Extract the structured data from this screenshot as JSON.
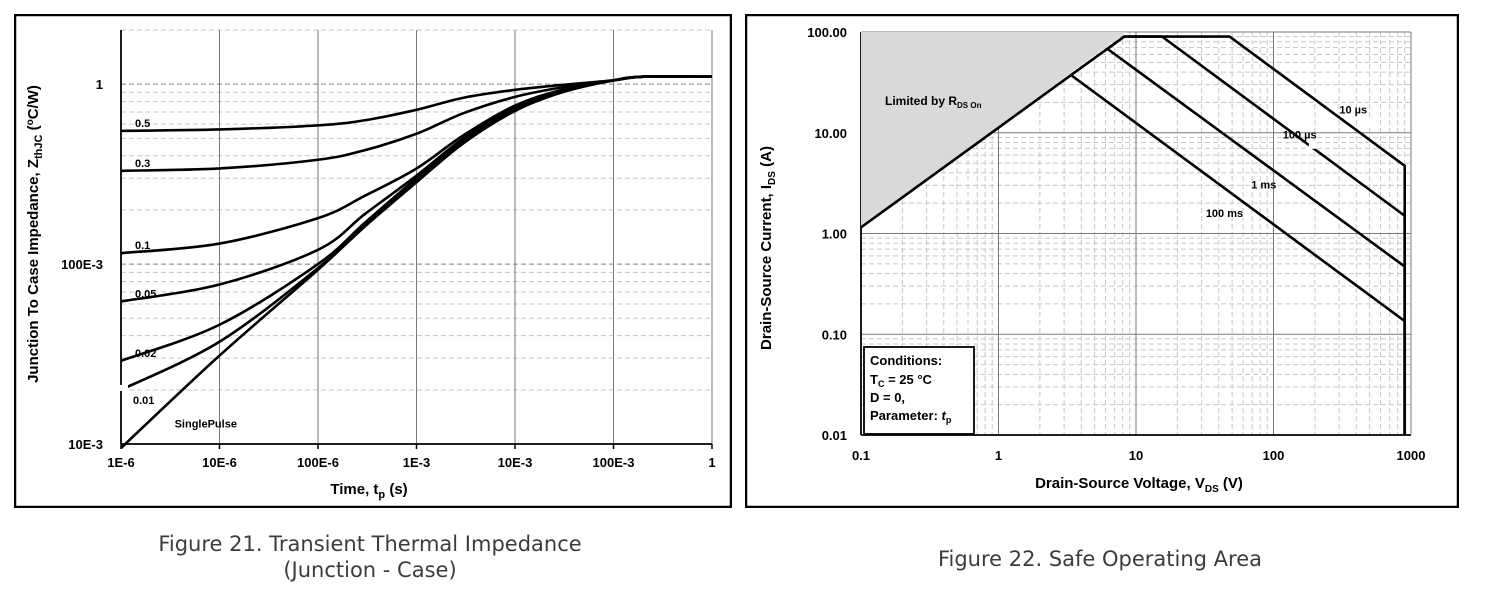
{
  "figures": [
    {
      "caption_line1": "Figure 21. Transient Thermal Impedance",
      "caption_line2": "(Junction - Case)"
    },
    {
      "caption_line1": "Figure 22. Safe Operating Area"
    }
  ],
  "chart_data": [
    {
      "type": "line",
      "x_scale": "log",
      "y_scale": "log",
      "xlabel": "Time, t",
      "xlabel_sub": "p",
      "xlabel_unit": " (s)",
      "ylabel": "Junction To Case Impedance, Z",
      "ylabel_sub": "thJC",
      "ylabel_unit": " (",
      "ylabel_unit_sup": "o",
      "ylabel_unit_tail": "C/W)",
      "xlim": [
        1e-06,
        1
      ],
      "ylim": [
        0.01,
        2
      ],
      "x_ticks": [
        1e-06,
        1e-05,
        0.0001,
        0.001,
        0.01,
        0.1,
        1
      ],
      "x_tick_labels": [
        "1E-6",
        "10E-6",
        "100E-6",
        "1E-3",
        "10E-3",
        "100E-3",
        "1"
      ],
      "y_ticks": [
        0.01,
        0.1,
        1
      ],
      "y_tick_labels": [
        "10E-3",
        "100E-3",
        "1"
      ],
      "grid": true,
      "series": [
        {
          "name": "0.5",
          "x": [
            1e-06,
            1e-05,
            0.0001,
            0.0003,
            0.001,
            0.003,
            0.01,
            0.03,
            0.1,
            0.2,
            1
          ],
          "y": [
            0.55,
            0.56,
            0.59,
            0.63,
            0.72,
            0.84,
            0.93,
            0.99,
            1.05,
            1.1,
            1.1
          ]
        },
        {
          "name": "0.3",
          "x": [
            1e-06,
            1e-05,
            0.0001,
            0.0003,
            0.001,
            0.003,
            0.01,
            0.03,
            0.1,
            0.2,
            1
          ],
          "y": [
            0.33,
            0.34,
            0.38,
            0.43,
            0.53,
            0.69,
            0.85,
            0.96,
            1.05,
            1.1,
            1.1
          ]
        },
        {
          "name": "0.1",
          "x": [
            1e-06,
            1e-05,
            0.0001,
            0.0003,
            0.001,
            0.003,
            0.01,
            0.03,
            0.1,
            0.2,
            1
          ],
          "y": [
            0.115,
            0.13,
            0.18,
            0.24,
            0.34,
            0.52,
            0.76,
            0.93,
            1.05,
            1.1,
            1.1
          ]
        },
        {
          "name": "0.05",
          "x": [
            1e-06,
            1e-05,
            0.0001,
            0.0003,
            0.001,
            0.003,
            0.01,
            0.03,
            0.1,
            0.2,
            1
          ],
          "y": [
            0.062,
            0.077,
            0.12,
            0.19,
            0.31,
            0.5,
            0.74,
            0.92,
            1.05,
            1.1,
            1.1
          ]
        },
        {
          "name": "0.02",
          "x": [
            1e-06,
            1e-05,
            0.0001,
            0.0003,
            0.001,
            0.003,
            0.01,
            0.03,
            0.1,
            0.2,
            1
          ],
          "y": [
            0.029,
            0.046,
            0.1,
            0.17,
            0.3,
            0.49,
            0.73,
            0.92,
            1.05,
            1.1,
            1.1
          ]
        },
        {
          "name": "0.01",
          "x": [
            1e-06,
            1e-05,
            0.0001,
            0.0003,
            0.001,
            0.003,
            0.01,
            0.03,
            0.1,
            0.2,
            1
          ],
          "y": [
            0.02,
            0.037,
            0.095,
            0.165,
            0.29,
            0.48,
            0.72,
            0.91,
            1.05,
            1.1,
            1.1
          ]
        },
        {
          "name": "SinglePulse",
          "x": [
            1e-06,
            1e-05,
            0.0001,
            0.0003,
            0.001,
            0.003,
            0.01,
            0.03,
            0.1,
            0.2,
            1
          ],
          "y": [
            0.0095,
            0.031,
            0.093,
            0.162,
            0.285,
            0.47,
            0.71,
            0.9,
            1.05,
            1.1,
            1.1
          ]
        }
      ]
    },
    {
      "type": "line",
      "x_scale": "log",
      "y_scale": "log",
      "xlabel": "Drain-Source Voltage, V",
      "xlabel_sub": "DS",
      "xlabel_unit": " (V)",
      "ylabel": "Drain-Source Current, I",
      "ylabel_sub": "DS",
      "ylabel_unit": " (A)",
      "xlim": [
        0.1,
        1000
      ],
      "ylim": [
        0.01,
        100
      ],
      "x_ticks": [
        0.1,
        1,
        10,
        100,
        1000
      ],
      "x_tick_labels": [
        "0.1",
        "1",
        "10",
        "100",
        "1000"
      ],
      "y_ticks": [
        0.01,
        0.1,
        1,
        10,
        100
      ],
      "y_tick_labels": [
        "0.01",
        "0.10",
        "1.00",
        "10.00",
        "100.00"
      ],
      "grid": true,
      "limit_region": {
        "label": "Limited by R",
        "label_sub": "DS On",
        "x": [
          0.1,
          8.5
        ],
        "y": [
          1.15,
          100
        ]
      },
      "series": [
        {
          "name": "10 µs",
          "x": [
            8.2,
            48,
            900,
            900
          ],
          "y": [
            90,
            90,
            4.7,
            0.01
          ]
        },
        {
          "name": "100 µs",
          "x": [
            6.2,
            8.2,
            15.5,
            900,
            900
          ],
          "y": [
            68,
            90,
            90,
            1.5,
            0.01
          ]
        },
        {
          "name": "1 ms",
          "x": [
            900,
            900
          ],
          "y": [
            0.47,
            0.01
          ]
        },
        {
          "name": "100 ms",
          "x": [
            3.4,
            900,
            900
          ],
          "y": [
            37,
            0.135,
            0.01
          ]
        },
        {
          "name": "R_DS_On limit",
          "x": [
            0.1,
            8.2
          ],
          "y": [
            1.15,
            90
          ]
        }
      ],
      "extra_lines": [
        {
          "x": [
            6.2,
            900
          ],
          "y": [
            68,
            0.47
          ]
        }
      ],
      "conditions": {
        "title": "Conditions:",
        "line1": "T",
        "line1_sub": "C",
        "line1_tail": " = 25 °C",
        "line2": "D = 0,",
        "line3": "Parameter: ",
        "line3_italic": "t",
        "line3_sub": "p"
      }
    }
  ]
}
